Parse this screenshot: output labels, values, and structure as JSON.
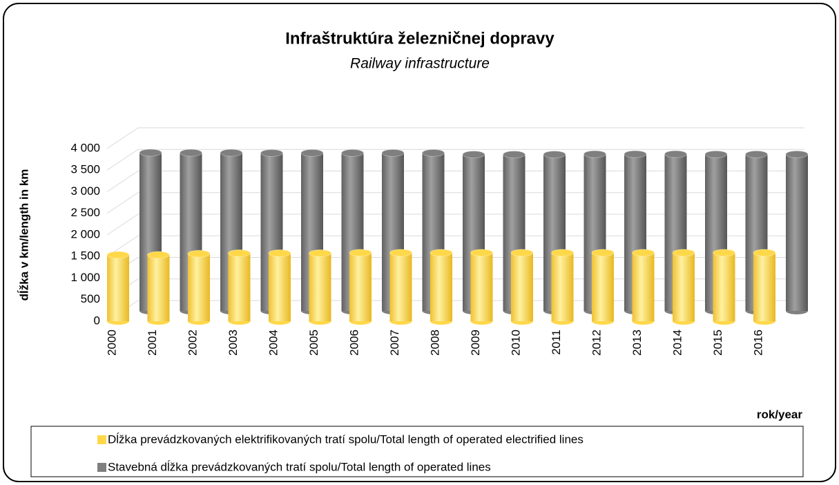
{
  "chart_data": {
    "type": "bar3d",
    "title": "Infraštruktúra železničnej dopravy",
    "subtitle": "Railway infrastructure",
    "y_label": "dĺžka v km/length in km",
    "x_label": "rok/year",
    "categories": [
      "2000",
      "2001",
      "2002",
      "2003",
      "2004",
      "2005",
      "2006",
      "2007",
      "2008",
      "2009",
      "2010",
      "2011",
      "2012",
      "2013",
      "2014",
      "2015",
      "2016"
    ],
    "series": [
      {
        "name": "Dĺžka prevádzkovaných elektrifikovaných tratí spolu/Total length of operated electrified lines",
        "color": "#ffd84a",
        "values": [
          1536,
          1536,
          1565,
          1577,
          1577,
          1577,
          1587,
          1587,
          1587,
          1587,
          1586,
          1587,
          1587,
          1587,
          1587,
          1587,
          1587
        ]
      },
      {
        "name": "Stavebná dĺžka prevádzkovaných tratí spolu/Total length of operated lines",
        "color": "#7f7f7f",
        "values": [
          3665,
          3662,
          3662,
          3657,
          3658,
          3658,
          3659,
          3659,
          3622,
          3622,
          3623,
          3631,
          3631,
          3631,
          3627,
          3626,
          3627
        ]
      }
    ],
    "ylim": [
      0,
      4000
    ],
    "yticks": [
      0,
      500,
      {
        "value": 1000,
        "label": "1 000"
      },
      {
        "value": 1500,
        "label": "1 500"
      },
      {
        "value": 2000,
        "label": "2 000"
      },
      {
        "value": 2500,
        "label": "2 500"
      },
      {
        "value": 3000,
        "label": "3 000"
      },
      {
        "value": 3500,
        "label": "3 500"
      },
      {
        "value": 4000,
        "label": "4 000"
      }
    ],
    "grid": true,
    "legend": "bottom"
  }
}
